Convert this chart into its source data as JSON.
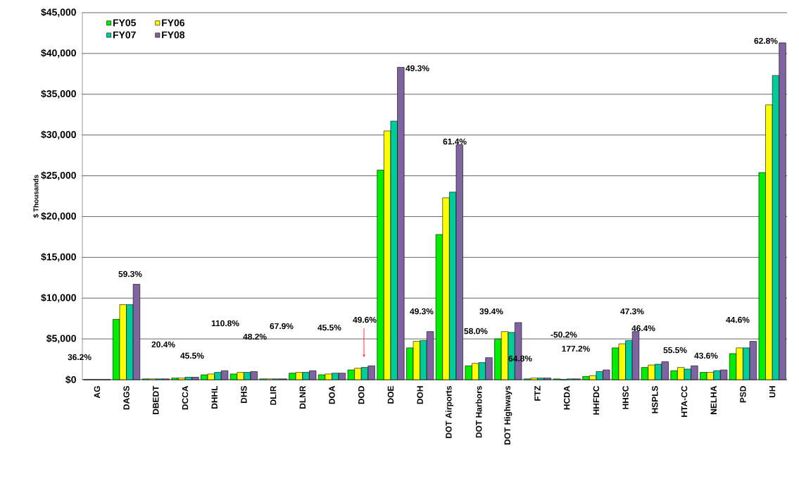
{
  "chart_data": {
    "type": "bar",
    "ylabel": "$ Thousands",
    "categories": [
      "AG",
      "DAGS",
      "DBEDT",
      "DCCA",
      "DHHL",
      "DHS",
      "DLIR",
      "DLNR",
      "DOA",
      "DOD",
      "DOE",
      "DOH",
      "DOT Airports",
      "DOT Harbors",
      "DOT Highways",
      "FTZ",
      "HCDA",
      "HHFDC",
      "HHSC",
      "HSPLS",
      "HTA-CC",
      "NELHA",
      "PSD",
      "UH"
    ],
    "series": [
      {
        "name": "FY05",
        "color": "#00ee00",
        "values": [
          0,
          7400,
          100,
          200,
          600,
          700,
          100,
          800,
          600,
          1200,
          25700,
          3900,
          17800,
          1700,
          5000,
          100,
          100,
          400,
          3900,
          1500,
          1100,
          900,
          3200,
          25400
        ]
      },
      {
        "name": "FY06",
        "color": "#ffff00",
        "values": [
          0,
          9200,
          100,
          200,
          700,
          900,
          100,
          900,
          700,
          1400,
          30500,
          4700,
          22300,
          2000,
          5900,
          200,
          0,
          500,
          4400,
          1800,
          1500,
          900,
          3900,
          33700
        ]
      },
      {
        "name": "FY07",
        "color": "#00cc99",
        "values": [
          0,
          9200,
          100,
          300,
          900,
          900,
          100,
          900,
          800,
          1500,
          31700,
          4800,
          23000,
          2100,
          5800,
          200,
          100,
          1000,
          4800,
          1900,
          1300,
          1100,
          3900,
          37300
        ]
      },
      {
        "name": "FY08",
        "color": "#8064a2",
        "values": [
          0,
          11700,
          100,
          300,
          1100,
          1000,
          100,
          1100,
          800,
          1700,
          38300,
          5900,
          28800,
          2700,
          7000,
          200,
          100,
          1200,
          5900,
          2200,
          1700,
          1200,
          4700,
          41300
        ]
      }
    ],
    "ylim": [
      0,
      45000
    ],
    "yticks": [
      {
        "value": 0,
        "label": "$0"
      },
      {
        "value": 5000,
        "label": "$5,000"
      },
      {
        "value": 10000,
        "label": "$10,000"
      },
      {
        "value": 15000,
        "label": "$15,000"
      },
      {
        "value": 20000,
        "label": "$20,000"
      },
      {
        "value": 25000,
        "label": "$25,000"
      },
      {
        "value": 30000,
        "label": "$30,000"
      },
      {
        "value": 35000,
        "label": "$35,000"
      },
      {
        "value": 40000,
        "label": "$40,000"
      },
      {
        "value": 45000,
        "label": "$45,000"
      }
    ],
    "grid": "y",
    "legend": "top left",
    "annotations": [
      "36.2%",
      "59.3%",
      "20.4%",
      "45.5%",
      "110.8%",
      "48.2%",
      "67.9%",
      "45.5%",
      "49.6%",
      "49.3%",
      "49.3%",
      "61.4%",
      "58.0%",
      "39.4%",
      "64.8%",
      "-50.2%",
      "177.2%",
      "47.3%",
      "46.4%",
      "55.5%",
      "43.6%",
      "44.6%",
      "62.8%"
    ]
  }
}
